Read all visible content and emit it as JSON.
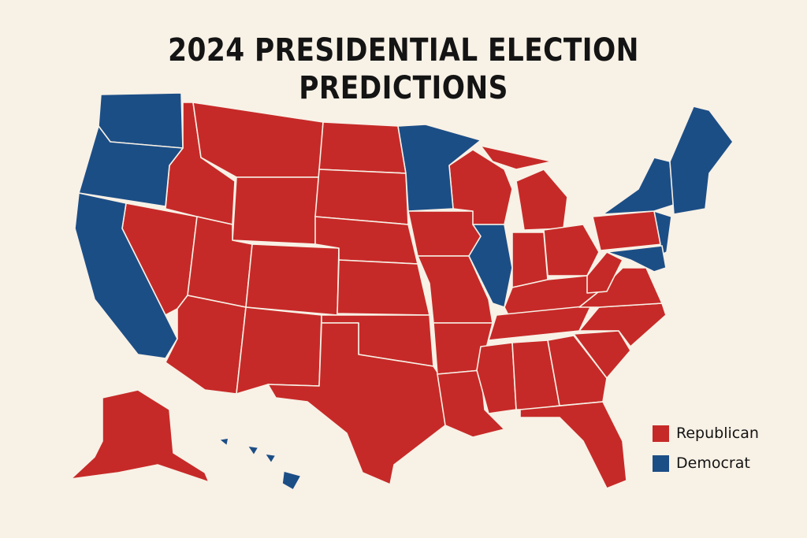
{
  "title": {
    "lines": [
      "2024 PRESIDENTIAL ELECTION",
      "PREDICTIONS"
    ]
  },
  "legend": [
    {
      "label": "Republican",
      "color": "#c62a28"
    },
    {
      "label": "Democrat",
      "color": "#1c4e86"
    }
  ]
}
